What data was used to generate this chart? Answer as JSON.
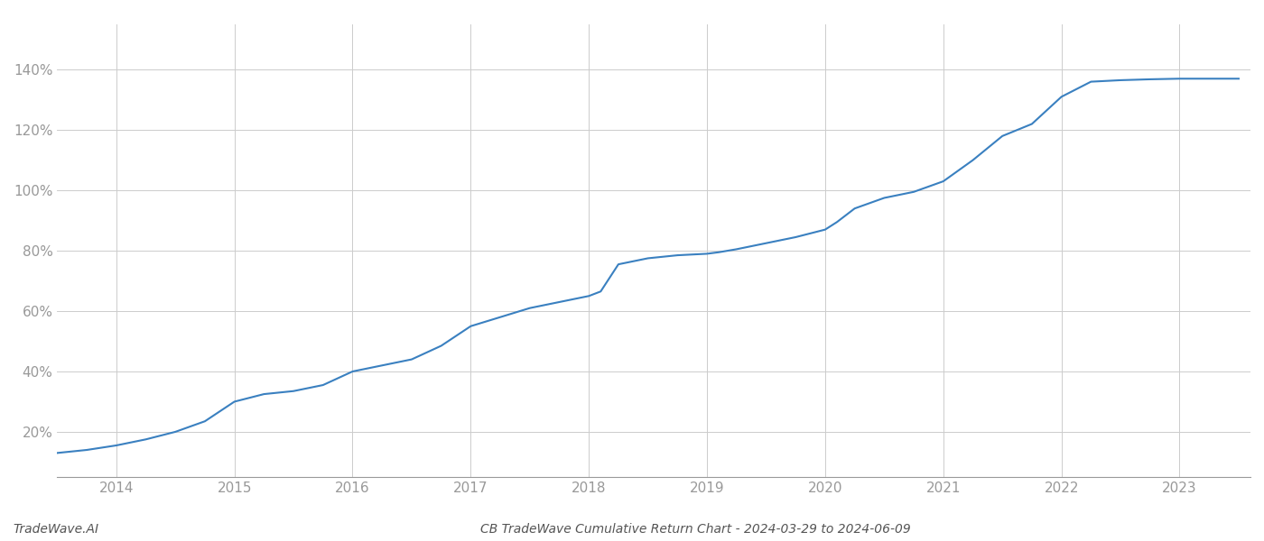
{
  "title": "CB TradeWave Cumulative Return Chart - 2024-03-29 to 2024-06-09",
  "watermark": "TradeWave.AI",
  "line_color": "#3a80c0",
  "line_width": 1.5,
  "background_color": "#ffffff",
  "grid_color": "#cccccc",
  "x_values": [
    2013.25,
    2013.5,
    2013.75,
    2014.0,
    2014.25,
    2014.5,
    2014.75,
    2015.0,
    2015.25,
    2015.5,
    2015.75,
    2016.0,
    2016.25,
    2016.5,
    2016.75,
    2017.0,
    2017.25,
    2017.5,
    2017.75,
    2018.0,
    2018.1,
    2018.25,
    2018.5,
    2018.75,
    2019.0,
    2019.1,
    2019.25,
    2019.5,
    2019.75,
    2020.0,
    2020.1,
    2020.25,
    2020.5,
    2020.75,
    2021.0,
    2021.25,
    2021.5,
    2021.75,
    2022.0,
    2022.1,
    2022.25,
    2022.5,
    2022.75,
    2023.0,
    2023.25,
    2023.5
  ],
  "y_values": [
    12.0,
    13.0,
    14.0,
    15.5,
    17.5,
    20.0,
    23.5,
    30.0,
    32.5,
    33.5,
    35.5,
    40.0,
    42.0,
    44.0,
    48.5,
    55.0,
    58.0,
    61.0,
    63.0,
    65.0,
    66.5,
    75.5,
    77.5,
    78.5,
    79.0,
    79.5,
    80.5,
    82.5,
    84.5,
    87.0,
    89.5,
    94.0,
    97.5,
    99.5,
    103.0,
    110.0,
    118.0,
    122.0,
    131.0,
    133.0,
    136.0,
    136.5,
    136.8,
    137.0,
    137.0,
    137.0
  ],
  "xlim": [
    2013.5,
    2023.6
  ],
  "ylim": [
    5,
    155
  ],
  "yticks": [
    20,
    40,
    60,
    80,
    100,
    120,
    140
  ],
  "xticks": [
    2014,
    2015,
    2016,
    2017,
    2018,
    2019,
    2020,
    2021,
    2022,
    2023
  ],
  "title_fontsize": 10,
  "watermark_fontsize": 10,
  "tick_fontsize": 11,
  "tick_color": "#999999",
  "spine_color": "#999999"
}
